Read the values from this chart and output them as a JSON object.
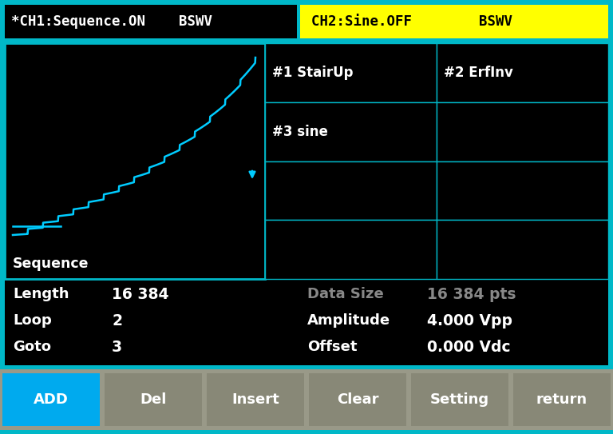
{
  "bg_color": "#00b8c8",
  "screen_bg": "#000000",
  "header_ch1_bg": "#000000",
  "header_ch2_bg": "#ffff00",
  "header_ch1_text": "*CH1:Sequence.ON    BSWV",
  "header_ch2_text": "CH2:Sine.OFF        BSWV",
  "header_ch1_color": "#ffffff",
  "header_ch2_color": "#000000",
  "waveform_label": "Sequence",
  "table_entries": [
    [
      "#1 StairUp",
      "#2 ErfInv"
    ],
    [
      "#3 sine",
      ""
    ],
    [
      "",
      ""
    ],
    [
      "",
      ""
    ]
  ],
  "table_border_color": "#00b8c8",
  "info_rows": [
    {
      "label": "Length",
      "label_color": "#ffffff",
      "value": "16 384",
      "value_color": "#ffffff"
    },
    {
      "label": "Loop",
      "label_color": "#ffffff",
      "value": "2",
      "value_color": "#ffffff"
    },
    {
      "label": "Goto",
      "label_color": "#ffffff",
      "value": "3",
      "value_color": "#ffffff"
    }
  ],
  "info_rows_right": [
    {
      "label": "Data Size",
      "label_color": "#888888",
      "value": "16 384 pts",
      "value_color": "#888888"
    },
    {
      "label": "Amplitude",
      "label_color": "#ffffff",
      "value": "4.000 Vpp",
      "value_color": "#ffffff"
    },
    {
      "label": "Offset",
      "label_color": "#ffffff",
      "value": "0.000 Vdc",
      "value_color": "#ffffff"
    }
  ],
  "buttons": [
    "ADD",
    "Del",
    "Insert",
    "Clear",
    "Setting",
    "return"
  ],
  "button_colors": [
    "#00aaee",
    "#888877",
    "#888877",
    "#888877",
    "#888877",
    "#888877"
  ],
  "button_text_colors": [
    "#ffffff",
    "#ffffff",
    "#ffffff",
    "#ffffff",
    "#ffffff",
    "#ffffff"
  ],
  "waveform_color": "#00ccff",
  "arrow_color": "#00ccff",
  "btn_bar_color": "#999988"
}
